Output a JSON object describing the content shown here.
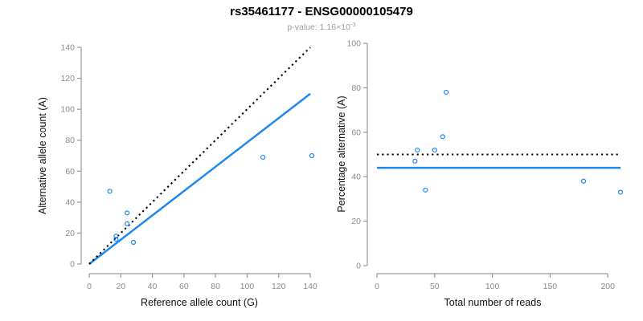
{
  "header": {
    "title": "rs35461177 - ENSG00000105479",
    "subtitle_base": "p-value: 1.16×10",
    "subtitle_exponent": "-3"
  },
  "colors": {
    "point_blue": "#1e87f0",
    "fit_line_blue": "#1e87f0",
    "reference_line_black": "#000000",
    "axis_gray": "#999999",
    "tick_text_gray": "#8a8a8a",
    "axis_title_black": "#111111",
    "subtitle_gray": "#9b9b9b"
  },
  "chart_data": [
    {
      "type": "scatter",
      "id": "allele-count-scatter",
      "xlabel": "Reference allele count (G)",
      "ylabel": "Alternative allele count (A)",
      "xlim": [
        0,
        140
      ],
      "ylim": [
        0,
        140
      ],
      "xticks": [
        0,
        20,
        40,
        60,
        80,
        100,
        120,
        140
      ],
      "yticks": [
        0,
        20,
        40,
        60,
        80,
        100,
        120,
        140
      ],
      "grid": false,
      "legend": "none",
      "points": [
        [
          13,
          47
        ],
        [
          24,
          33
        ],
        [
          24,
          26
        ],
        [
          17,
          18
        ],
        [
          17,
          16
        ],
        [
          28,
          14
        ],
        [
          110,
          69
        ],
        [
          141,
          70
        ]
      ],
      "lines": [
        {
          "role": "fit-line",
          "x1": 0,
          "y1": 0,
          "x2": 140,
          "y2": 110,
          "style": "solid",
          "color": "#1e87f0"
        },
        {
          "role": "identity-line",
          "x1": 0,
          "y1": 0,
          "x2": 140,
          "y2": 140,
          "style": "dotted",
          "color": "#000000"
        }
      ]
    },
    {
      "type": "scatter",
      "id": "percentage-scatter",
      "xlabel": "Total number of reads",
      "ylabel": "Percentage alternative (A)",
      "xlim": [
        0,
        211
      ],
      "ylim": [
        0,
        100
      ],
      "xticks": [
        0,
        50,
        100,
        150,
        200
      ],
      "yticks": [
        0,
        20,
        40,
        60,
        80,
        100
      ],
      "grid": false,
      "legend": "none",
      "points": [
        [
          60,
          78
        ],
        [
          57,
          58
        ],
        [
          50,
          52
        ],
        [
          35,
          52
        ],
        [
          33,
          47
        ],
        [
          42,
          34
        ],
        [
          179,
          38
        ],
        [
          211,
          33
        ]
      ],
      "lines": [
        {
          "role": "mean-percentage-line",
          "x1": 0,
          "y1": 44,
          "x2": 211,
          "y2": 44,
          "style": "solid",
          "color": "#1e87f0"
        },
        {
          "role": "fifty-percent-line",
          "x1": 0,
          "y1": 50,
          "x2": 211,
          "y2": 50,
          "style": "dotted",
          "color": "#000000"
        }
      ]
    }
  ]
}
